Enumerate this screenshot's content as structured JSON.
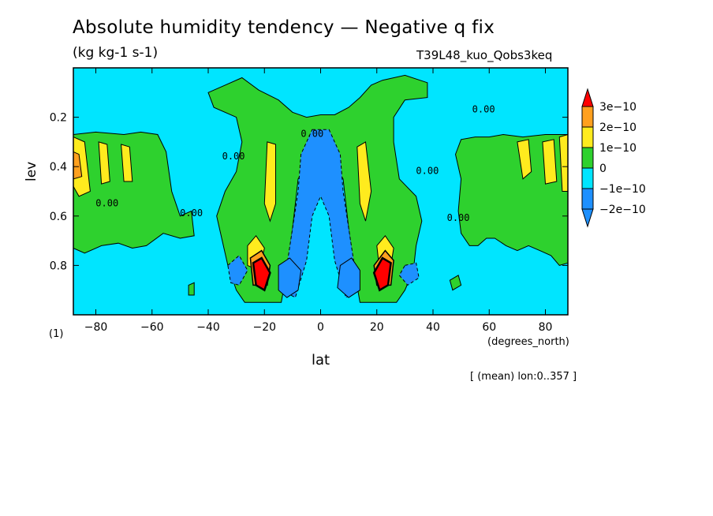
{
  "chart_data": {
    "type": "heatmap",
    "title": "Absolute humidity tendency — Negative q fix",
    "units": "(kg kg-1 s-1)",
    "run_label": "T39L48_kuo_Qobs3keq",
    "xlabel": "lat",
    "x_unit": "(degrees_north)",
    "ylabel": "lev",
    "ylabel_note": "(1)",
    "footnote": "[ (mean) lon:0..357 ]",
    "xlim": [
      -88,
      88
    ],
    "ylim": [
      1.0,
      0.0
    ],
    "x_ticks": [
      -80,
      -60,
      -40,
      -20,
      0,
      20,
      40,
      60,
      80
    ],
    "x_tick_labels": [
      "−80",
      "−60",
      "−40",
      "−20",
      "0",
      "20",
      "40",
      "60",
      "80"
    ],
    "y_ticks": [
      0.2,
      0.4,
      0.6,
      0.8
    ],
    "y_tick_labels": [
      "0.2",
      "0.4",
      "0.6",
      "0.8"
    ],
    "contour_levels": [
      -2e-10,
      -1e-10,
      0,
      1e-10,
      2e-10,
      3e-10
    ],
    "colorbar_labels": [
      "3e−10",
      "2e−10",
      "1e−10",
      "0",
      "−1e−10",
      "−2e−10"
    ],
    "colors": {
      "below_-2e-10": "#1e90ff",
      "-2e-10_to_-1e-10": "#1e90ff",
      "-1e-10_to_0": "#00e5ff",
      "0_to_1e-10": "#2ed12e",
      "1e-10_to_2e-10": "#ffeb1e",
      "2e-10_to_3e-10": "#ffa01e",
      "above_3e-10": "#ff0000"
    },
    "contour_line_labels": [
      "0.00",
      "0.00",
      "0.00",
      "0.00",
      "0.00",
      "0.00",
      "0.00"
    ],
    "features": [
      {
        "lat": -22,
        "lev": 0.85,
        "value": 3.5e-10
      },
      {
        "lat": 22,
        "lev": 0.85,
        "value": 3.5e-10
      },
      {
        "lat": -11,
        "lev": 0.87,
        "value": -2.5e-10
      },
      {
        "lat": 10,
        "lev": 0.87,
        "value": -2.5e-10
      },
      {
        "lat": 0,
        "lev": 0.45,
        "value": -1.5e-10
      },
      {
        "lat": -85,
        "lev": 0.4,
        "value": 2e-10
      },
      {
        "lat": 85,
        "lev": 0.4,
        "value": 2e-10
      },
      {
        "lat": -17,
        "lev": 0.4,
        "value": 1.5e-10
      },
      {
        "lat": 15,
        "lev": 0.4,
        "value": 1.5e-10
      }
    ],
    "grid": false
  }
}
